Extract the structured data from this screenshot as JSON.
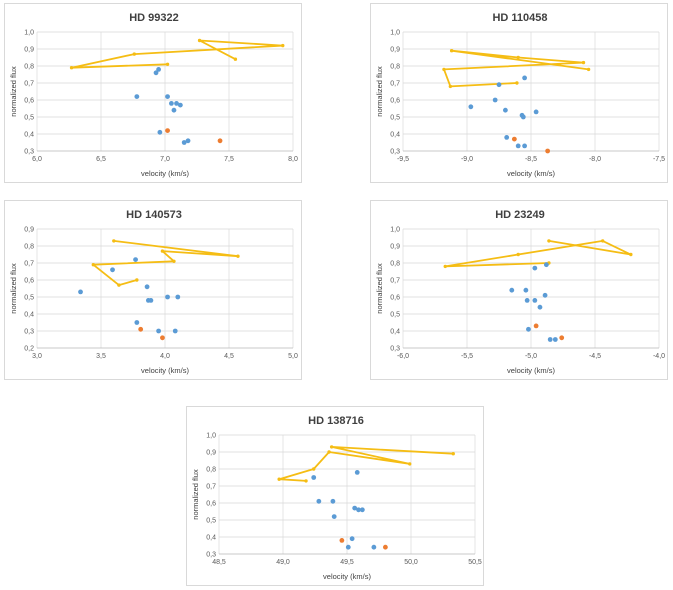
{
  "colors": {
    "line": "#f5bd14",
    "blue": "#5b9bd5",
    "orange": "#ed7d31"
  },
  "chart_data": [
    {
      "type": "scatter",
      "title": "HD 99322",
      "xlabel": "velocity (km/s)",
      "ylabel": "normalized flux",
      "xlim": [
        6.0,
        8.0
      ],
      "ylim": [
        0.3,
        1.0
      ],
      "xticks": [
        "6,0",
        "6,5",
        "7,0",
        "7,5",
        "8,0"
      ],
      "yticks": [
        "0,3",
        "0,4",
        "0,5",
        "0,6",
        "0,7",
        "0,8",
        "0,9",
        "1,0"
      ],
      "grid": true,
      "series": [
        {
          "kind": "line",
          "color": "yellow",
          "points": [
            [
              7.55,
              0.84
            ],
            [
              7.27,
              0.95
            ],
            [
              7.92,
              0.92
            ],
            [
              6.76,
              0.87
            ],
            [
              6.27,
              0.79
            ],
            [
              7.02,
              0.81
            ]
          ]
        },
        {
          "kind": "scatter",
          "color": "blue",
          "points": [
            [
              6.95,
              0.78
            ],
            [
              6.93,
              0.76
            ],
            [
              6.78,
              0.62
            ],
            [
              7.02,
              0.62
            ],
            [
              7.05,
              0.58
            ],
            [
              7.09,
              0.58
            ],
            [
              7.12,
              0.57
            ],
            [
              7.07,
              0.54
            ],
            [
              6.96,
              0.41
            ],
            [
              7.15,
              0.35
            ],
            [
              7.18,
              0.36
            ]
          ]
        },
        {
          "kind": "scatter",
          "color": "orange",
          "points": [
            [
              7.02,
              0.42
            ],
            [
              7.43,
              0.36
            ]
          ]
        }
      ]
    },
    {
      "type": "scatter",
      "title": "HD 110458",
      "xlabel": "velocity (km/s)",
      "ylabel": "normalized flux",
      "xlim": [
        -9.5,
        -7.5
      ],
      "ylim": [
        0.3,
        1.0
      ],
      "xticks": [
        "-9,5",
        "-9,0",
        "-8,5",
        "-8,0",
        "-7,5"
      ],
      "yticks": [
        "0,3",
        "0,4",
        "0,5",
        "0,6",
        "0,7",
        "0,8",
        "0,9",
        "1,0"
      ],
      "grid": true,
      "series": [
        {
          "kind": "line",
          "color": "yellow",
          "points": [
            [
              -8.61,
              0.7
            ],
            [
              -9.13,
              0.68
            ],
            [
              -9.18,
              0.78
            ],
            [
              -8.09,
              0.82
            ],
            [
              -8.6,
              0.85
            ],
            [
              -9.12,
              0.89
            ],
            [
              -8.05,
              0.78
            ]
          ]
        },
        {
          "kind": "scatter",
          "color": "blue",
          "points": [
            [
              -8.55,
              0.73
            ],
            [
              -8.75,
              0.69
            ],
            [
              -8.78,
              0.6
            ],
            [
              -8.97,
              0.56
            ],
            [
              -8.7,
              0.54
            ],
            [
              -8.57,
              0.51
            ],
            [
              -8.56,
              0.5
            ],
            [
              -8.46,
              0.53
            ],
            [
              -8.69,
              0.38
            ],
            [
              -8.6,
              0.33
            ],
            [
              -8.55,
              0.33
            ]
          ]
        },
        {
          "kind": "scatter",
          "color": "orange",
          "points": [
            [
              -8.63,
              0.37
            ],
            [
              -8.37,
              0.3
            ]
          ]
        }
      ]
    },
    {
      "type": "scatter",
      "title": "HD 140573",
      "xlabel": "velocity (km/s)",
      "ylabel": "normalized flux",
      "xlim": [
        3.0,
        5.0
      ],
      "ylim": [
        0.2,
        0.9
      ],
      "xticks": [
        "3,0",
        "3,5",
        "4,0",
        "4,5",
        "5,0"
      ],
      "yticks": [
        "0,2",
        "0,3",
        "0,4",
        "0,5",
        "0,6",
        "0,7",
        "0,8",
        "0,9"
      ],
      "grid": true,
      "series": [
        {
          "kind": "line",
          "color": "yellow",
          "points": [
            [
              3.78,
              0.6
            ],
            [
              3.64,
              0.57
            ],
            [
              3.44,
              0.69
            ],
            [
              4.07,
              0.71
            ],
            [
              3.98,
              0.77
            ],
            [
              4.57,
              0.74
            ],
            [
              3.6,
              0.83
            ]
          ]
        },
        {
          "kind": "scatter",
          "color": "blue",
          "points": [
            [
              3.77,
              0.72
            ],
            [
              3.59,
              0.66
            ],
            [
              3.86,
              0.56
            ],
            [
              3.34,
              0.53
            ],
            [
              4.02,
              0.5
            ],
            [
              4.1,
              0.5
            ],
            [
              3.87,
              0.48
            ],
            [
              3.89,
              0.48
            ],
            [
              3.78,
              0.35
            ],
            [
              3.95,
              0.3
            ],
            [
              4.08,
              0.3
            ]
          ]
        },
        {
          "kind": "scatter",
          "color": "orange",
          "points": [
            [
              3.81,
              0.31
            ],
            [
              3.98,
              0.26
            ]
          ]
        }
      ]
    },
    {
      "type": "scatter",
      "title": "HD 23249",
      "xlabel": "velocity (km/s)",
      "ylabel": "normalized flux",
      "xlim": [
        -6.0,
        -4.0
      ],
      "ylim": [
        0.3,
        1.0
      ],
      "xticks": [
        "-6,0",
        "-5,5",
        "-5,0",
        "-4,5",
        "-4,0"
      ],
      "yticks": [
        "0,3",
        "0,4",
        "0,5",
        "0,6",
        "0,7",
        "0,8",
        "0,9",
        "1,0"
      ],
      "grid": true,
      "series": [
        {
          "kind": "line",
          "color": "yellow",
          "points": [
            [
              -4.86,
              0.8
            ],
            [
              -5.67,
              0.78
            ],
            [
              -5.1,
              0.85
            ],
            [
              -4.44,
              0.93
            ],
            [
              -4.22,
              0.85
            ],
            [
              -4.86,
              0.93
            ]
          ]
        },
        {
          "kind": "scatter",
          "color": "blue",
          "points": [
            [
              -4.88,
              0.79
            ],
            [
              -4.97,
              0.77
            ],
            [
              -5.15,
              0.64
            ],
            [
              -5.04,
              0.64
            ],
            [
              -5.03,
              0.58
            ],
            [
              -4.97,
              0.58
            ],
            [
              -4.89,
              0.61
            ],
            [
              -4.93,
              0.54
            ],
            [
              -5.02,
              0.41
            ],
            [
              -4.85,
              0.35
            ],
            [
              -4.81,
              0.35
            ]
          ]
        },
        {
          "kind": "scatter",
          "color": "orange",
          "points": [
            [
              -4.96,
              0.43
            ],
            [
              -4.76,
              0.36
            ]
          ]
        }
      ]
    },
    {
      "type": "scatter",
      "title": "HD 138716",
      "xlabel": "velocity (km/s)",
      "ylabel": "normalized flux",
      "xlim": [
        48.5,
        50.5
      ],
      "ylim": [
        0.3,
        1.0
      ],
      "xticks": [
        "48,5",
        "49,0",
        "49,5",
        "50,0",
        "50,5"
      ],
      "yticks": [
        "0,3",
        "0,4",
        "0,5",
        "0,6",
        "0,7",
        "0,8",
        "0,9",
        "1,0"
      ],
      "grid": true,
      "series": [
        {
          "kind": "line",
          "color": "yellow",
          "points": [
            [
              49.18,
              0.73
            ],
            [
              48.97,
              0.74
            ],
            [
              49.24,
              0.8
            ],
            [
              49.36,
              0.9
            ],
            [
              49.99,
              0.83
            ],
            [
              49.38,
              0.93
            ],
            [
              50.33,
              0.89
            ]
          ]
        },
        {
          "kind": "scatter",
          "color": "blue",
          "points": [
            [
              49.24,
              0.75
            ],
            [
              49.58,
              0.78
            ],
            [
              49.28,
              0.61
            ],
            [
              49.39,
              0.61
            ],
            [
              49.56,
              0.57
            ],
            [
              49.59,
              0.56
            ],
            [
              49.62,
              0.56
            ],
            [
              49.4,
              0.52
            ],
            [
              49.54,
              0.39
            ],
            [
              49.51,
              0.34
            ],
            [
              49.71,
              0.34
            ]
          ]
        },
        {
          "kind": "scatter",
          "color": "orange",
          "points": [
            [
              49.46,
              0.38
            ],
            [
              49.8,
              0.34
            ]
          ]
        }
      ]
    }
  ]
}
